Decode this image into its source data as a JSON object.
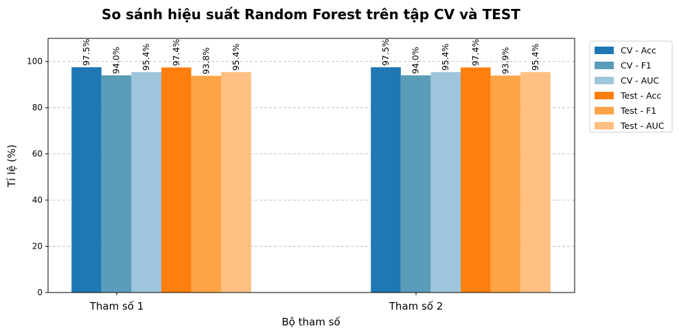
{
  "chart_data": {
    "type": "bar",
    "title": "So sánh hiệu suất Random Forest trên tập CV và TEST",
    "xlabel": "Bộ tham số",
    "ylabel": "Tỉ lệ (%)",
    "categories": [
      "Tham số 1",
      "Tham số 2"
    ],
    "ylim": [
      0,
      110
    ],
    "yticks": [
      0,
      20,
      40,
      60,
      80,
      100
    ],
    "grid": "y-dashed",
    "legend_position": "outside-top-right",
    "series": [
      {
        "name": "CV - Acc",
        "color": "#1f77b4",
        "values": [
          97.5,
          97.5
        ],
        "labels": [
          "97.5%",
          "97.5%"
        ]
      },
      {
        "name": "CV - F1",
        "color": "#5b9cb9",
        "values": [
          94.0,
          94.0
        ],
        "labels": [
          "94.0%",
          "94.0%"
        ]
      },
      {
        "name": "CV - AUC",
        "color": "#9ec5db",
        "values": [
          95.4,
          95.4
        ],
        "labels": [
          "95.4%",
          "95.4%"
        ]
      },
      {
        "name": "Test - Acc",
        "color": "#ff7f0e",
        "values": [
          97.4,
          97.4
        ],
        "labels": [
          "97.4%",
          "97.4%"
        ]
      },
      {
        "name": "Test - F1",
        "color": "#ffa348",
        "values": [
          93.8,
          93.9
        ],
        "labels": [
          "93.8%",
          "93.9%"
        ]
      },
      {
        "name": "Test - AUC",
        "color": "#ffc081",
        "values": [
          95.4,
          95.4
        ],
        "labels": [
          "95.4%",
          "95.4%"
        ]
      }
    ]
  }
}
